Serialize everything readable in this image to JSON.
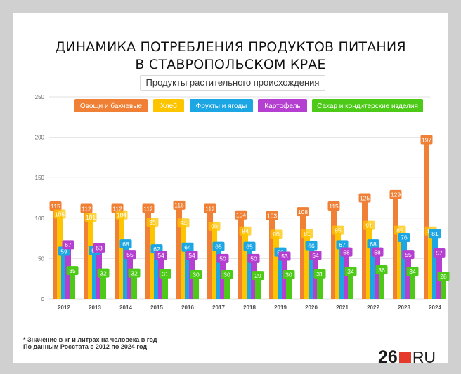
{
  "title_line1": "ДИНАМИКА ПОТРЕБЛЕНИЯ ПРОДУКТОВ ПИТАНИЯ",
  "title_line2": "В СТАВРОПОЛЬСКОМ КРАЕ",
  "subtitle": "Продукты растительного происхождения",
  "footnote_line1": "* Значение в кг и литрах на человека в год",
  "footnote_line2": "По данным Росстата с 2012 по 2024 год",
  "logo": {
    "number": "26",
    "suffix": "RU"
  },
  "colors": {
    "vegetables": "#ef8035",
    "bread": "#fdc400",
    "fruits": "#1da6e4",
    "potatoes": "#b43fd0",
    "sugar": "#4dca18"
  },
  "chart_data": {
    "type": "bar",
    "categories": [
      "2012",
      "2013",
      "2014",
      "2015",
      "2016",
      "2017",
      "2018",
      "2019",
      "2020",
      "2021",
      "2022",
      "2023",
      "2024"
    ],
    "ylim": [
      0,
      250
    ],
    "yticks": [
      0,
      50,
      100,
      150,
      200,
      250
    ],
    "grid": true,
    "legend_position": "top",
    "series": [
      {
        "name": "Овощи и бахчевые",
        "color": "#ef8035",
        "values": [
          115,
          112,
          112,
          112,
          116,
          112,
          104,
          103,
          108,
          115,
          125,
          129,
          197
        ]
      },
      {
        "name": "Хлеб",
        "color": "#fdc400",
        "values": [
          105,
          101,
          104,
          95,
          94,
          90,
          84,
          80,
          81,
          85,
          91,
          85,
          84
        ]
      },
      {
        "name": "Фрукты и ягоды",
        "color": "#1da6e4",
        "values": [
          59,
          60,
          68,
          62,
          64,
          65,
          65,
          58,
          66,
          67,
          68,
          76,
          81
        ]
      },
      {
        "name": "Картофель",
        "color": "#b43fd0",
        "values": [
          67,
          63,
          55,
          54,
          54,
          50,
          50,
          53,
          54,
          58,
          58,
          55,
          57
        ]
      },
      {
        "name": "Сахар и кондитерские изделия",
        "color": "#4dca18",
        "values": [
          35,
          32,
          32,
          31,
          30,
          30,
          29,
          30,
          31,
          34,
          36,
          34,
          28
        ]
      }
    ]
  }
}
